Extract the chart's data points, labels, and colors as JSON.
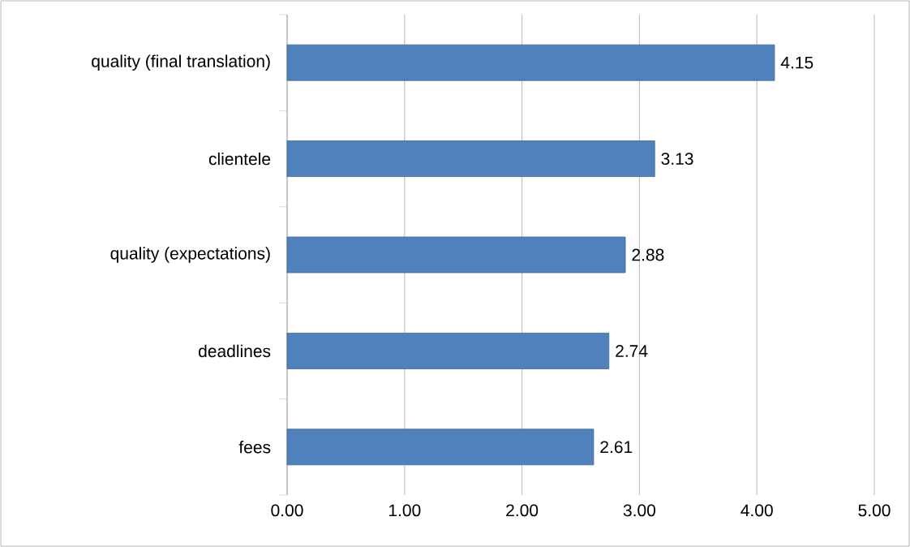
{
  "chart_data": {
    "type": "bar",
    "orientation": "horizontal",
    "categories": [
      "quality (final translation)",
      "clientele",
      "quality (expectations)",
      "deadlines",
      "fees"
    ],
    "values": [
      4.15,
      3.13,
      2.88,
      2.74,
      2.61
    ],
    "color": "#4f81bd",
    "xlim": [
      0,
      5
    ],
    "xticks": [
      {
        "value": 0,
        "label": "0.00"
      },
      {
        "value": 1,
        "label": "1.00"
      },
      {
        "value": 2,
        "label": "2.00"
      },
      {
        "value": 3,
        "label": "3.00"
      },
      {
        "value": 4,
        "label": "4.00"
      },
      {
        "value": 5,
        "label": "5.00"
      }
    ],
    "grid": "x",
    "data_labels": true
  }
}
